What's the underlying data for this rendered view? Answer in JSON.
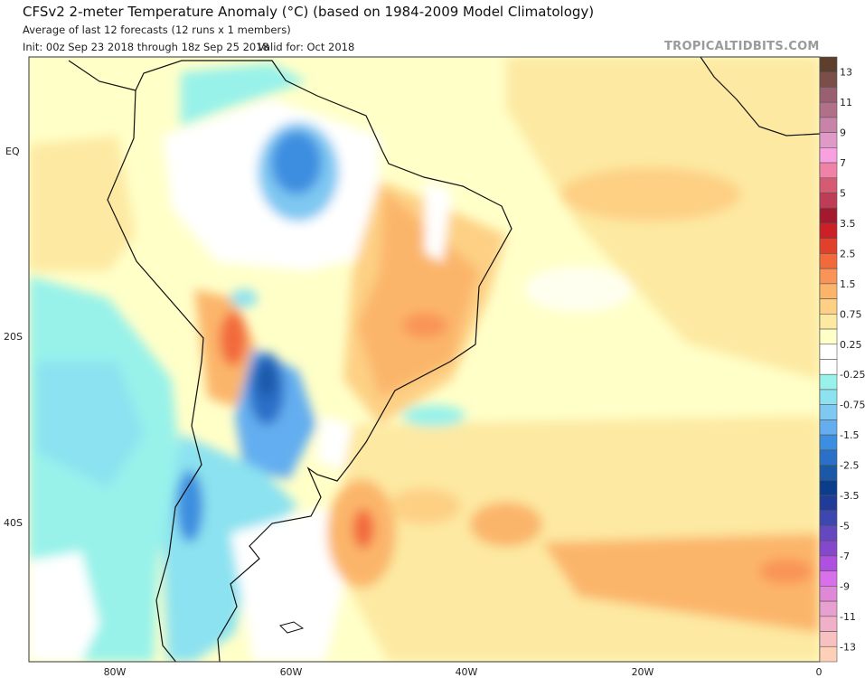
{
  "header": {
    "title": "CFSv2 2-meter Temperature Anomaly (°C) (based on 1984-2009 Model Climatology)",
    "subtitle": "Average of last 12 forecasts (12 runs x 1 members)",
    "init": "Init: 00z Sep 23 2018 through 18z Sep 25 2018",
    "valid": "Valid for: Oct 2018",
    "watermark": "TROPICALTIDBITS.COM"
  },
  "map": {
    "variable": "2-meter temperature anomaly",
    "units": "°C",
    "lat_labels": [
      "EQ",
      "20S",
      "40S"
    ],
    "lon_labels": [
      "80W",
      "60W",
      "40W",
      "20W",
      "0"
    ]
  },
  "colorbar": {
    "boundaries": [
      14,
      13,
      12,
      11,
      10,
      9,
      8,
      7,
      6,
      5,
      4,
      3.5,
      3,
      2.5,
      2,
      1.5,
      1,
      0.75,
      0.5,
      0.25,
      0,
      -0.25,
      -0.5,
      -0.75,
      -1,
      -1.5,
      -2,
      -2.5,
      -3,
      -3.5,
      -4,
      -5,
      -6,
      -7,
      -8,
      -9,
      -10,
      -11,
      -12,
      -13,
      -14
    ],
    "colors": [
      "#5e3e2c",
      "#7c4e4a",
      "#986070",
      "#b07088",
      "#c884a8",
      "#e09ac8",
      "#f8a0e0",
      "#ef82a6",
      "#d65a72",
      "#be3c55",
      "#a5192e",
      "#cc1f26",
      "#e0412a",
      "#f26a3c",
      "#f99456",
      "#fbb56a",
      "#fdd084",
      "#fde9a2",
      "#ffffc8",
      "#ffffff",
      "#ffffff",
      "#98f2ea",
      "#8ce2f0",
      "#7ec8f2",
      "#64aef0",
      "#3c8ee0",
      "#2a70c8",
      "#1a58a8",
      "#0c3c8c",
      "#1e3c98",
      "#3c48b0",
      "#6448c0",
      "#8448cc",
      "#b050e0",
      "#d870ec",
      "#e088d8",
      "#e8a0d0",
      "#f0b0c8",
      "#f8c0c0",
      "#ffd0b8"
    ],
    "labels": [
      "13",
      "11",
      "9",
      "7",
      "5",
      "3.5",
      "2.5",
      "1.5",
      "0.75",
      "0.25",
      "-0.25",
      "-0.75",
      "-1.5",
      "-2.5",
      "-3.5",
      "-5",
      "-7",
      "-9",
      "-11",
      "-13"
    ]
  }
}
